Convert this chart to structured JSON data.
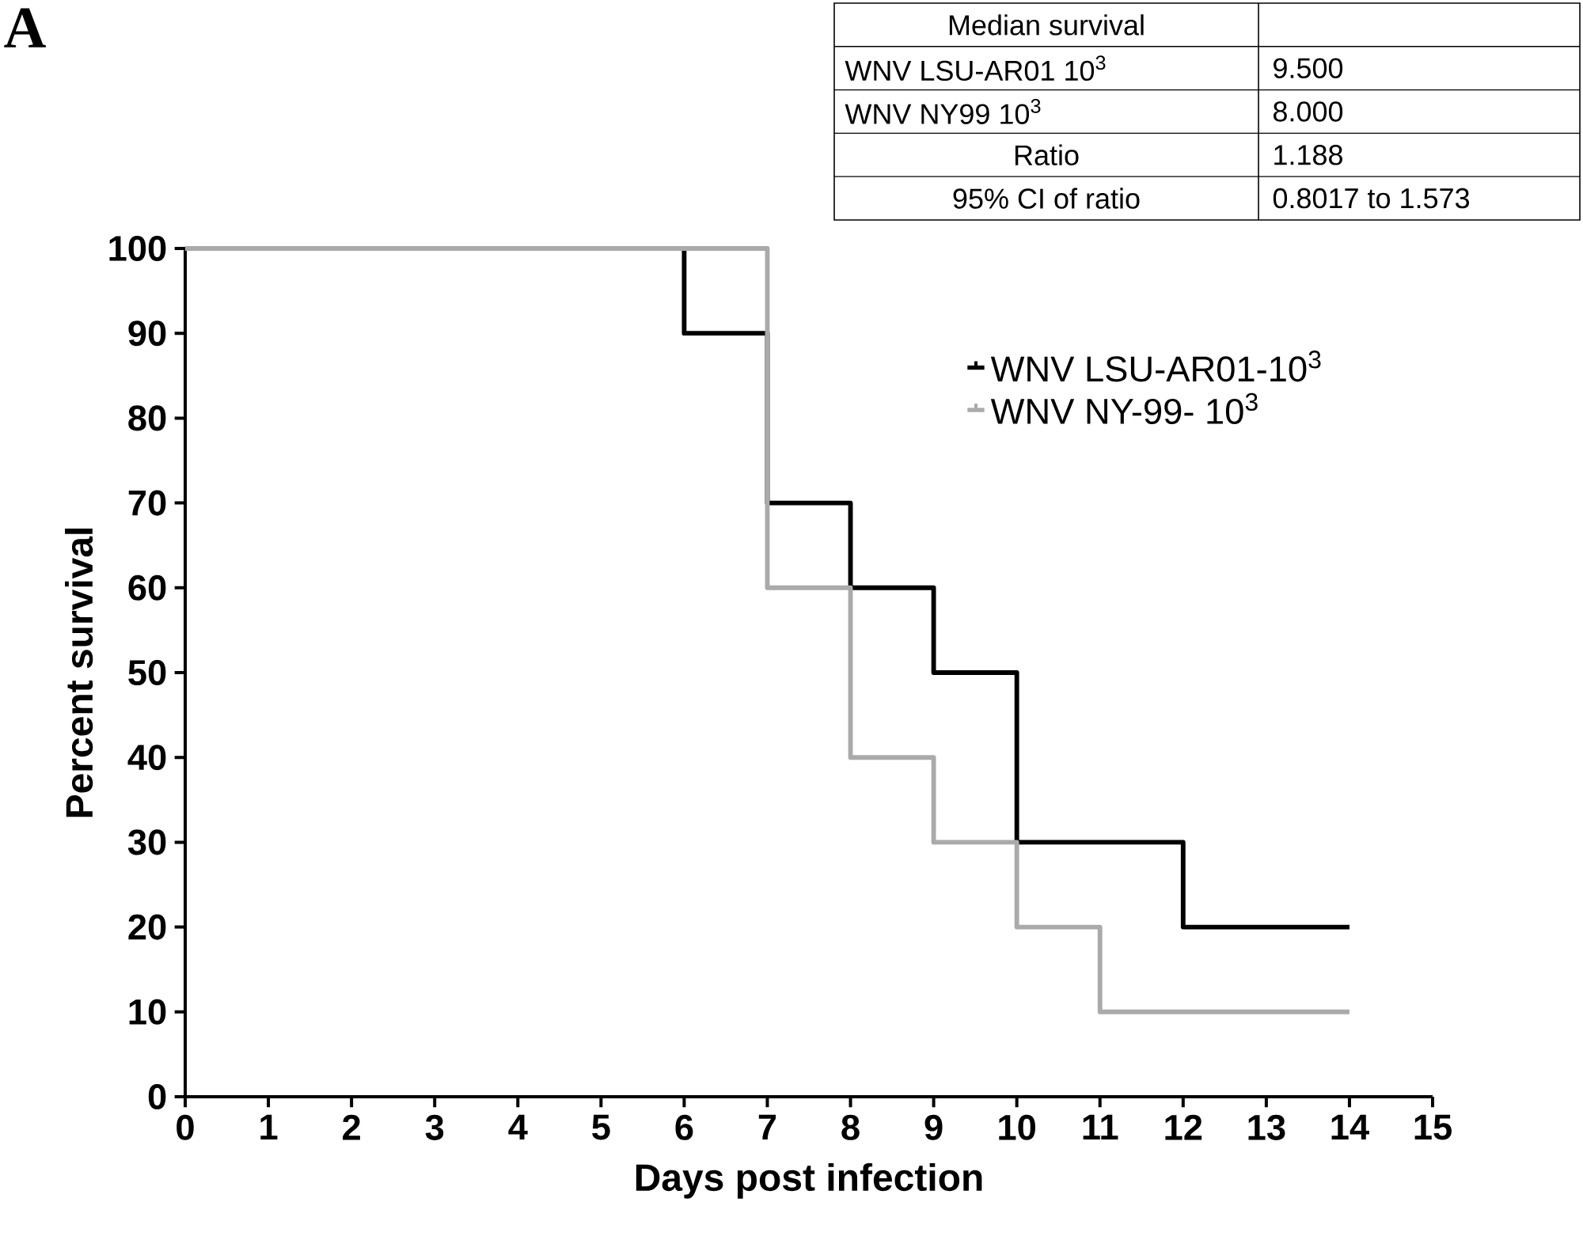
{
  "chart_data": {
    "type": "step",
    "xlabel": "Days post infection",
    "ylabel": "Percent survival",
    "xlim": [
      0,
      15
    ],
    "xticks": [
      0,
      1,
      2,
      3,
      4,
      5,
      6,
      7,
      8,
      9,
      10,
      11,
      12,
      13,
      14,
      15
    ],
    "ylim": [
      0,
      100
    ],
    "yticks": [
      0,
      10,
      20,
      30,
      40,
      50,
      60,
      70,
      80,
      90,
      100
    ],
    "series": [
      {
        "name": "WNV LSU-AR01-10$^{3}$",
        "color": "#000000",
        "x": [
          0,
          6,
          7,
          8,
          9,
          10,
          12,
          14
        ],
        "values": [
          100,
          90,
          70,
          60,
          50,
          30,
          20,
          20
        ]
      },
      {
        "name": "WNV NY-99- 10$^{3}$",
        "color": "#aaaaaa",
        "x": [
          0,
          7,
          8,
          9,
          10,
          11,
          14
        ],
        "values": [
          100,
          60,
          40,
          30,
          20,
          10,
          10
        ]
      }
    ],
    "legend": "top right",
    "grid": false,
    "annotations": [
      "A",
      "Median survival",
      "WNV LSU-AR01 10$^{3}$",
      "9.500",
      "WNV NY99 10$^{3}$",
      "8.000",
      "Ratio",
      "1.188",
      "95% CI of ratio",
      "0.8017 to 1.573"
    ]
  }
}
